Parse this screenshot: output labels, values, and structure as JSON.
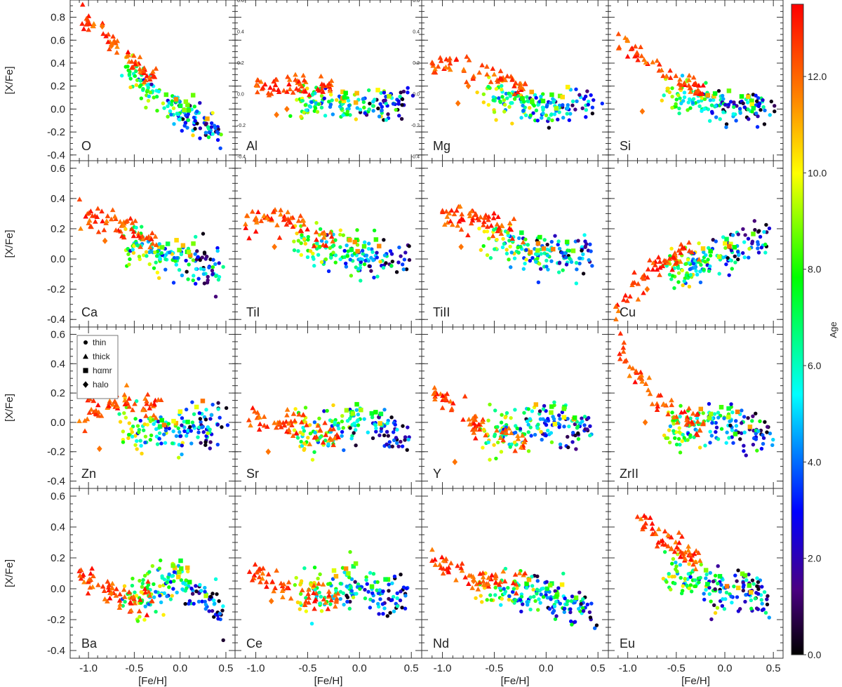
{
  "figure": {
    "x_axis_label": "[Fe/H]",
    "y_axis_label": "[X/Fe]",
    "colorbar_label": "Age",
    "colorbar_ticks": [
      "0.0",
      "2.0",
      "4.0",
      "6.0",
      "8.0",
      "10.0",
      "12.0"
    ],
    "legend": [
      {
        "label": "thin",
        "marker": "circle"
      },
      {
        "label": "thick",
        "marker": "triangle"
      },
      {
        "label": "hαmr",
        "marker": "square"
      },
      {
        "label": "halo",
        "marker": "diamond"
      }
    ],
    "x_ticks": [
      "-1.0",
      "-0.5",
      "0.0",
      "0.5"
    ],
    "y_ticks_row1": [
      "-0.4",
      "-0.2",
      "0.0",
      "0.2",
      "0.4",
      "0.6",
      "0.8"
    ],
    "y_ticks_rows": [
      "-0.4",
      "-0.2",
      "0.0",
      "0.2",
      "0.4",
      "0.6"
    ],
    "al_inner_ticks": [
      "-0.4",
      "-0.2",
      "0.0",
      "0.2",
      "0.4",
      "0.6"
    ]
  },
  "chart_data": {
    "type": "scatter",
    "xlim": [
      -1.2,
      0.6
    ],
    "ylim_row1": [
      -0.45,
      0.95
    ],
    "ylim_rows": [
      -0.45,
      0.65
    ],
    "al_ylim": [
      -0.43,
      0.6
    ],
    "color_scale": {
      "name": "rainbow (black→purple→blue→cyan→green→yellow→red)",
      "range": [
        0,
        13.5
      ]
    },
    "panels": [
      {
        "element": "O",
        "row": 0,
        "col": 0
      },
      {
        "element": "Al",
        "row": 0,
        "col": 1
      },
      {
        "element": "Mg",
        "row": 0,
        "col": 2
      },
      {
        "element": "Si",
        "row": 0,
        "col": 3
      },
      {
        "element": "Ca",
        "row": 1,
        "col": 0
      },
      {
        "element": "TiI",
        "row": 1,
        "col": 1
      },
      {
        "element": "TiII",
        "row": 1,
        "col": 2
      },
      {
        "element": "Cu",
        "row": 1,
        "col": 3
      },
      {
        "element": "Zn",
        "row": 2,
        "col": 0
      },
      {
        "element": "Sr",
        "row": 2,
        "col": 1
      },
      {
        "element": "Y",
        "row": 2,
        "col": 2
      },
      {
        "element": "ZrII",
        "row": 2,
        "col": 3
      },
      {
        "element": "Ba",
        "row": 3,
        "col": 0
      },
      {
        "element": "Ce",
        "row": 3,
        "col": 1
      },
      {
        "element": "Nd",
        "row": 3,
        "col": 2
      },
      {
        "element": "Eu",
        "row": 3,
        "col": 3
      }
    ],
    "trends": {
      "O": {
        "thick": [
          [
            -1.1,
            0.85
          ],
          [
            -0.7,
            0.55
          ],
          [
            -0.35,
            0.28
          ]
        ],
        "thin": [
          [
            -0.6,
            0.35
          ],
          [
            0.0,
            -0.03
          ],
          [
            0.4,
            -0.2
          ]
        ],
        "halo": [
          [
            -0.85,
            0.72
          ],
          [
            -0.75,
            0.55
          ]
        ]
      },
      "Al": {
        "thick": [
          [
            -1.0,
            0.2
          ],
          [
            -0.6,
            0.22
          ],
          [
            -0.35,
            0.2
          ]
        ],
        "thin": [
          [
            -0.7,
            0.05
          ],
          [
            0.0,
            0.02
          ],
          [
            0.4,
            0.05
          ]
        ],
        "halo": [
          [
            -0.8,
            -0.05
          ],
          [
            -0.7,
            0.0
          ]
        ]
      },
      "Mg": {
        "thick": [
          [
            -1.1,
            0.4
          ],
          [
            -0.65,
            0.35
          ],
          [
            -0.3,
            0.2
          ]
        ],
        "thin": [
          [
            -0.6,
            0.15
          ],
          [
            0.0,
            0.0
          ],
          [
            0.45,
            0.05
          ]
        ],
        "halo": [
          [
            -0.85,
            0.05
          ],
          [
            -0.75,
            0.2
          ]
        ]
      },
      "Si": {
        "thick": [
          [
            -1.1,
            0.6
          ],
          [
            -0.6,
            0.3
          ],
          [
            -0.3,
            0.2
          ]
        ],
        "thin": [
          [
            -0.6,
            0.12
          ],
          [
            0.0,
            0.02
          ],
          [
            0.45,
            0.02
          ]
        ],
        "halo": [
          [
            -0.85,
            -0.02
          ]
        ]
      },
      "Ca": {
        "thick": [
          [
            -1.1,
            0.3
          ],
          [
            -0.7,
            0.25
          ],
          [
            -0.35,
            0.12
          ]
        ],
        "thin": [
          [
            -0.6,
            0.12
          ],
          [
            0.0,
            0.0
          ],
          [
            0.45,
            -0.1
          ]
        ],
        "halo": [
          [
            -0.82,
            0.12
          ]
        ]
      },
      "TiI": {
        "thick": [
          [
            -1.1,
            0.25
          ],
          [
            -0.7,
            0.28
          ],
          [
            -0.35,
            0.15
          ]
        ],
        "thin": [
          [
            -0.6,
            0.12
          ],
          [
            0.0,
            0.0
          ],
          [
            0.45,
            0.0
          ]
        ],
        "halo": [
          [
            -0.82,
            0.08
          ]
        ]
      },
      "TiII": {
        "thick": [
          [
            -1.0,
            0.28
          ],
          [
            -0.65,
            0.3
          ],
          [
            -0.3,
            0.15
          ]
        ],
        "thin": [
          [
            -0.6,
            0.15
          ],
          [
            0.0,
            0.0
          ],
          [
            0.45,
            0.05
          ]
        ],
        "halo": [
          [
            -0.82,
            0.08
          ]
        ]
      },
      "Cu": {
        "thick": [
          [
            -1.15,
            -0.35
          ],
          [
            -0.7,
            -0.05
          ],
          [
            -0.35,
            0.05
          ]
        ],
        "thin": [
          [
            -0.5,
            -0.05
          ],
          [
            0.0,
            0.0
          ],
          [
            0.45,
            0.15
          ]
        ],
        "halo": [
          [
            -0.8,
            -0.2
          ]
        ]
      },
      "Zn": {
        "thick": [
          [
            -1.1,
            0.05
          ],
          [
            -0.6,
            0.15
          ],
          [
            -0.3,
            0.1
          ]
        ],
        "thin": [
          [
            -0.6,
            -0.05
          ],
          [
            0.0,
            -0.05
          ],
          [
            0.45,
            0.0
          ]
        ],
        "halo": [
          [
            -0.88,
            -0.18
          ]
        ]
      },
      "Sr": {
        "thick": [
          [
            -1.1,
            0.05
          ],
          [
            -0.7,
            0.0
          ],
          [
            -0.3,
            -0.08
          ]
        ],
        "thin": [
          [
            -0.5,
            -0.08
          ],
          [
            0.0,
            0.0
          ],
          [
            0.45,
            -0.1
          ]
        ],
        "halo": [
          [
            -0.88,
            -0.2
          ]
        ]
      },
      "Y": {
        "thick": [
          [
            -1.1,
            0.2
          ],
          [
            -0.6,
            -0.05
          ],
          [
            -0.3,
            -0.1
          ]
        ],
        "thin": [
          [
            -0.5,
            -0.1
          ],
          [
            0.0,
            0.0
          ],
          [
            0.45,
            -0.05
          ]
        ],
        "halo": [
          [
            -0.88,
            -0.27
          ]
        ]
      },
      "ZrII": {
        "thick": [
          [
            -1.1,
            0.5
          ],
          [
            -0.75,
            0.2
          ],
          [
            -0.3,
            0.0
          ]
        ],
        "thin": [
          [
            -0.5,
            -0.05
          ],
          [
            0.0,
            0.0
          ],
          [
            0.45,
            -0.1
          ]
        ],
        "halo": [
          [
            -0.82,
            0.0
          ]
        ]
      },
      "Ba": {
        "thick": [
          [
            -1.1,
            0.1
          ],
          [
            -0.7,
            -0.05
          ],
          [
            -0.4,
            -0.08
          ]
        ],
        "thin": [
          [
            -0.5,
            -0.05
          ],
          [
            0.0,
            0.05
          ],
          [
            0.45,
            -0.12
          ]
        ],
        "halo": [
          [
            -0.75,
            -0.03
          ]
        ]
      },
      "Ce": {
        "thick": [
          [
            -1.1,
            0.15
          ],
          [
            -0.7,
            -0.02
          ],
          [
            -0.3,
            -0.05
          ]
        ],
        "thin": [
          [
            -0.5,
            -0.02
          ],
          [
            0.0,
            0.0
          ],
          [
            0.45,
            -0.08
          ]
        ],
        "halo": [
          [
            -0.85,
            -0.08
          ]
        ]
      },
      "Nd": {
        "thick": [
          [
            -1.1,
            0.2
          ],
          [
            -0.7,
            0.05
          ],
          [
            -0.3,
            0.05
          ]
        ],
        "thin": [
          [
            -0.5,
            0.0
          ],
          [
            0.0,
            -0.05
          ],
          [
            0.45,
            -0.15
          ]
        ],
        "halo": [
          [
            -0.7,
            0.05
          ]
        ]
      },
      "Eu": {
        "thick": [
          [
            -0.9,
            0.45
          ],
          [
            -0.6,
            0.3
          ],
          [
            -0.35,
            0.2
          ]
        ],
        "thin": [
          [
            -0.5,
            0.1
          ],
          [
            0.0,
            -0.02
          ],
          [
            0.4,
            -0.05
          ]
        ],
        "halo": []
      }
    }
  }
}
